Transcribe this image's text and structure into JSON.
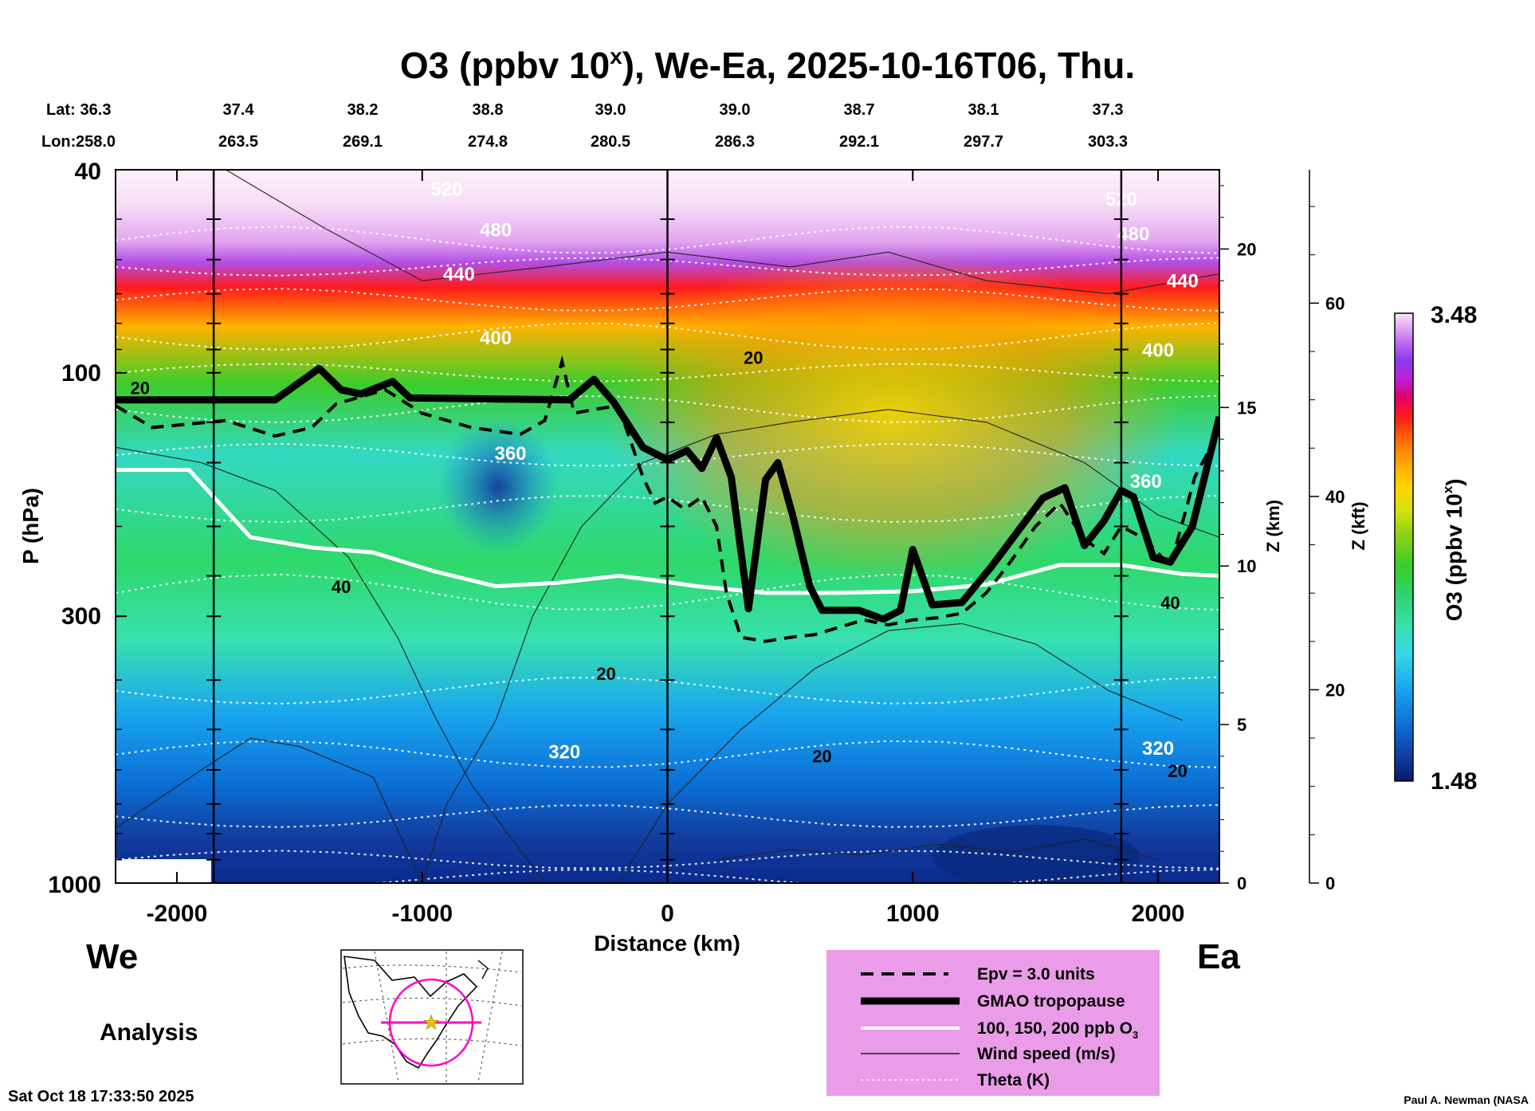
{
  "chart_data": {
    "type": "heatmap",
    "title_main": "O3 (ppbv 10",
    "title_sup": "x",
    "title_rest": "), We-Ea, 2025-10-16T06, Thu.",
    "lat_label": "Lat:",
    "lon_label": "Lon:",
    "lat": [
      "36.3",
      "37.4",
      "38.2",
      "38.8",
      "39.0",
      "39.0",
      "38.7",
      "38.1",
      "37.3"
    ],
    "lon": [
      "258.0",
      "263.5",
      "269.1",
      "274.8",
      "280.5",
      "286.3",
      "292.1",
      "297.7",
      "303.3"
    ],
    "xlabel": "Distance (km)",
    "x_ticks": [
      "-2000",
      "-1000",
      "0",
      "1000",
      "2000"
    ],
    "x_tick_values": [
      -2000,
      -1000,
      0,
      1000,
      2000
    ],
    "xlim": [
      -2250,
      2250
    ],
    "section_lines_km": [
      -1850,
      0,
      1850
    ],
    "ylabel": "P (hPa)",
    "y_ticks": [
      "40",
      "100",
      "300",
      "1000"
    ],
    "y_tick_values": [
      40,
      100,
      300,
      1000
    ],
    "ylim": [
      1000,
      40
    ],
    "z_km_label": "Z (km)",
    "z_km_ticks": [
      "20",
      "15",
      "10",
      "5",
      "0"
    ],
    "z_km_values": [
      20,
      15,
      10,
      5,
      0
    ],
    "z_kft_label": "Z (kft)",
    "z_kft_ticks": [
      "60",
      "40",
      "20",
      "0"
    ],
    "z_kft_values": [
      60,
      40,
      20,
      0
    ],
    "colorbar": {
      "label": "O3 (ppbv 10",
      "label_sup": "x",
      "label_end": ")",
      "max": "3.48",
      "min": "1.48",
      "colors": [
        "#0a1a6e",
        "#123a9c",
        "#0b6fd6",
        "#1aa7ee",
        "#34d8e8",
        "#38e0b0",
        "#2fd36a",
        "#3ccc2c",
        "#8fd414",
        "#d7e00c",
        "#ffd400",
        "#ffa500",
        "#ff6a00",
        "#ff1a1a",
        "#e0006a",
        "#c020d8",
        "#8a3cf0",
        "#c070f0",
        "#e6a8f2",
        "#f8e6f8"
      ]
    },
    "contour_labels": {
      "theta": [
        "520",
        "480",
        "440",
        "400",
        "360",
        "320",
        "520",
        "480",
        "440",
        "400",
        "360",
        "320"
      ],
      "wind": [
        "20",
        "20",
        "40",
        "20",
        "20",
        "40",
        "20"
      ]
    },
    "tropopause_hpa": [
      [
        -2250,
        113
      ],
      [
        -1600,
        113
      ],
      [
        -1420,
        98
      ],
      [
        -1330,
        108
      ],
      [
        -1250,
        110
      ],
      [
        -1120,
        104
      ],
      [
        -1050,
        112
      ],
      [
        -400,
        113
      ],
      [
        -300,
        103
      ],
      [
        -220,
        114
      ],
      [
        -100,
        140
      ],
      [
        0,
        148
      ],
      [
        80,
        142
      ],
      [
        140,
        154
      ],
      [
        200,
        134
      ],
      [
        260,
        160
      ],
      [
        330,
        290
      ],
      [
        400,
        162
      ],
      [
        450,
        150
      ],
      [
        510,
        190
      ],
      [
        580,
        262
      ],
      [
        630,
        292
      ],
      [
        780,
        292
      ],
      [
        880,
        304
      ],
      [
        950,
        292
      ],
      [
        1000,
        222
      ],
      [
        1080,
        285
      ],
      [
        1200,
        282
      ],
      [
        1320,
        240
      ],
      [
        1430,
        204
      ],
      [
        1530,
        176
      ],
      [
        1620,
        168
      ],
      [
        1700,
        218
      ],
      [
        1780,
        195
      ],
      [
        1850,
        170
      ],
      [
        1900,
        175
      ],
      [
        1980,
        230
      ],
      [
        2050,
        235
      ],
      [
        2140,
        200
      ],
      [
        2250,
        122
      ]
    ],
    "epv_hpa": [
      [
        -2250,
        116
      ],
      [
        -2100,
        128
      ],
      [
        -1950,
        126
      ],
      [
        -1800,
        124
      ],
      [
        -1600,
        133
      ],
      [
        -1450,
        128
      ],
      [
        -1350,
        115
      ],
      [
        -1150,
        108
      ],
      [
        -1000,
        120
      ],
      [
        -800,
        128
      ],
      [
        -600,
        132
      ],
      [
        -500,
        124
      ],
      [
        -430,
        95
      ],
      [
        -380,
        120
      ],
      [
        -300,
        118
      ],
      [
        -200,
        116
      ],
      [
        -100,
        160
      ],
      [
        -50,
        180
      ],
      [
        0,
        175
      ],
      [
        70,
        185
      ],
      [
        140,
        175
      ],
      [
        200,
        200
      ],
      [
        240,
        270
      ],
      [
        300,
        330
      ],
      [
        400,
        336
      ],
      [
        500,
        330
      ],
      [
        600,
        326
      ],
      [
        800,
        305
      ],
      [
        900,
        312
      ],
      [
        1000,
        305
      ],
      [
        1100,
        302
      ],
      [
        1200,
        296
      ],
      [
        1300,
        270
      ],
      [
        1400,
        234
      ],
      [
        1500,
        200
      ],
      [
        1600,
        180
      ],
      [
        1700,
        212
      ],
      [
        1780,
        226
      ],
      [
        1850,
        200
      ],
      [
        1950,
        212
      ],
      [
        2050,
        240
      ],
      [
        2150,
        160
      ],
      [
        2250,
        130
      ]
    ],
    "o3_100ppb_hpa": [
      [
        -2250,
        155
      ],
      [
        -1950,
        155
      ],
      [
        -1850,
        175
      ],
      [
        -1700,
        210
      ],
      [
        -1450,
        220
      ],
      [
        -1200,
        225
      ],
      [
        -950,
        245
      ],
      [
        -700,
        262
      ],
      [
        -450,
        258
      ],
      [
        -200,
        250
      ],
      [
        -50,
        255
      ],
      [
        120,
        262
      ],
      [
        400,
        270
      ],
      [
        700,
        270
      ],
      [
        1000,
        268
      ],
      [
        1300,
        260
      ],
      [
        1600,
        238
      ],
      [
        1850,
        238
      ],
      [
        2100,
        248
      ],
      [
        2250,
        250
      ]
    ]
  },
  "legend": {
    "items": [
      "Epv = 3.0 units",
      "GMAO tropopause",
      "100, 150, 200 ppb O",
      "Wind speed (m/s)",
      "Theta (K)"
    ],
    "o3_sub": "3"
  },
  "labels": {
    "west": "We",
    "east": "Ea",
    "analysis": "Analysis",
    "timestamp": "Sat Oct 18 17:33:50 2025",
    "credit": "Paul A. Newman (NASA"
  }
}
